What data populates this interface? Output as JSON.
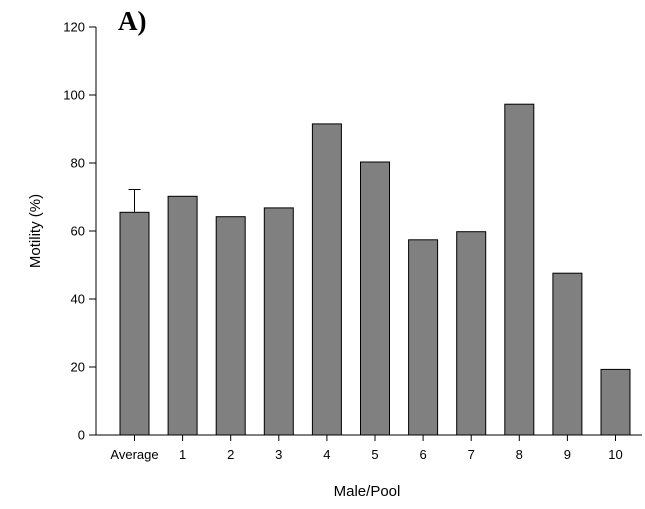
{
  "chart_data": {
    "type": "bar",
    "panel_label": "A)",
    "title": "",
    "xlabel": "Male/Pool",
    "ylabel": "Motility (%)",
    "ylim": [
      0,
      120
    ],
    "yticks": [
      0,
      20,
      40,
      60,
      80,
      100,
      120
    ],
    "grid": false,
    "categories": [
      "Average",
      "1",
      "2",
      "3",
      "4",
      "5",
      "6",
      "7",
      "8",
      "9",
      "10"
    ],
    "values": [
      65.5,
      70.2,
      64.2,
      66.8,
      91.5,
      80.3,
      57.4,
      59.8,
      97.3,
      47.6,
      19.3
    ],
    "error_bars": [
      {
        "category": "Average",
        "upper": 72.2
      }
    ],
    "bar_color": "#808080",
    "bar_edge_color": "#000000"
  }
}
